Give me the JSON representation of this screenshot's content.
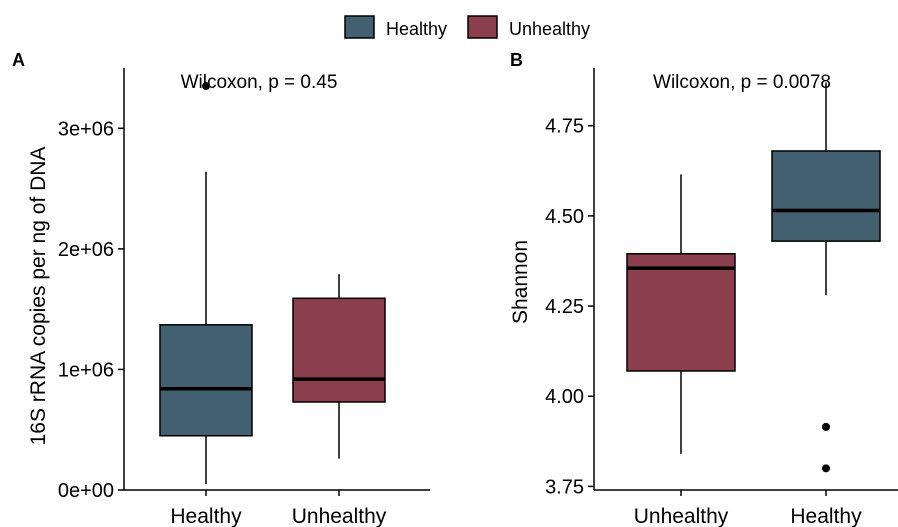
{
  "colors": {
    "healthy": "#42606f",
    "unhealthy": "#8b3f4c"
  },
  "legend": {
    "items": [
      {
        "label": "Healthy",
        "color": "#42606f"
      },
      {
        "label": "Unhealthy",
        "color": "#8b3f4c"
      }
    ],
    "placement": "top"
  },
  "chart_data": [
    {
      "type": "box",
      "panel_label": "A",
      "annotation": "Wilcoxon, p = 0.45",
      "xlabel": "",
      "ylabel": "16S rRNA copies per ng of DNA",
      "ylim": [
        0,
        3500000
      ],
      "yticks": [
        0,
        1000000,
        2000000,
        3000000
      ],
      "ytick_labels": [
        "0e+00",
        "1e+06",
        "2e+06",
        "3e+06"
      ],
      "grid": false,
      "categories": [
        "Healthy",
        "Unhealthy"
      ],
      "series": [
        {
          "category": "Healthy",
          "color": "#42606f",
          "whisker_low": 50000,
          "q1": 450000,
          "median": 840000,
          "q3": 1370000,
          "whisker_high": 2640000,
          "outliers": [
            3350000
          ]
        },
        {
          "category": "Unhealthy",
          "color": "#8b3f4c",
          "whisker_low": 260000,
          "q1": 730000,
          "median": 920000,
          "q3": 1590000,
          "whisker_high": 1790000,
          "outliers": []
        }
      ]
    },
    {
      "type": "box",
      "panel_label": "B",
      "annotation": "Wilcoxon, p = 0.0078",
      "xlabel": "",
      "ylabel": "Shannon",
      "ylim": [
        3.74,
        4.91
      ],
      "yticks": [
        3.75,
        4.0,
        4.25,
        4.5,
        4.75
      ],
      "ytick_labels": [
        "3.75",
        "4.00",
        "4.25",
        "4.50",
        "4.75"
      ],
      "grid": false,
      "categories": [
        "Unhealthy",
        "Healthy"
      ],
      "series": [
        {
          "category": "Unhealthy",
          "color": "#8b3f4c",
          "whisker_low": 3.84,
          "q1": 4.07,
          "median": 4.355,
          "q3": 4.395,
          "whisker_high": 4.615,
          "outliers": []
        },
        {
          "category": "Healthy",
          "color": "#42606f",
          "whisker_low": 4.28,
          "q1": 4.43,
          "median": 4.515,
          "q3": 4.68,
          "whisker_high": 4.87,
          "outliers": [
            3.915,
            3.8
          ]
        }
      ]
    }
  ]
}
